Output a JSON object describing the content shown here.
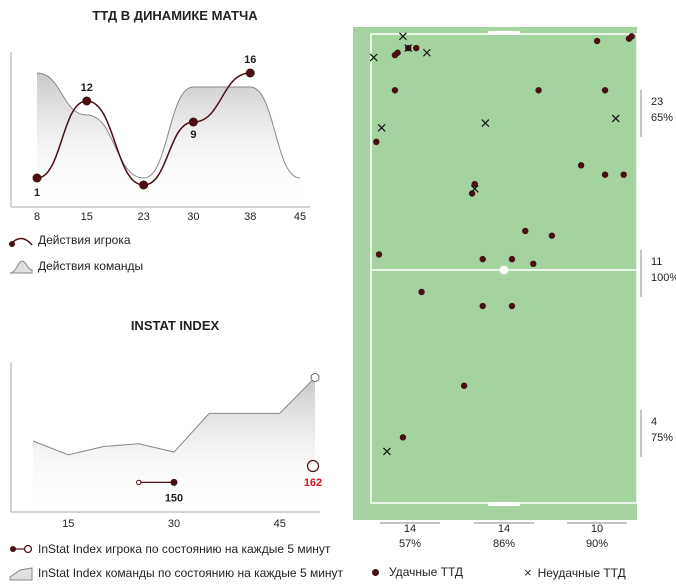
{
  "chart_data": [
    {
      "type": "line",
      "title": "ТТД В ДИНАМИКЕ МАТЧА",
      "x_ticks": [
        8,
        15,
        23,
        30,
        38,
        45
      ],
      "xlim": [
        8,
        45
      ],
      "series": [
        {
          "name": "Действия игрока",
          "x": [
            8,
            15,
            23,
            30,
            38
          ],
          "values": [
            1,
            12,
            0,
            9,
            16
          ]
        },
        {
          "name": "Действия команды",
          "x": [
            8,
            15,
            23,
            30,
            38,
            45
          ],
          "values": [
            16,
            10,
            1,
            14,
            14,
            1
          ]
        }
      ],
      "point_labels": [
        "1",
        "12",
        "",
        "9",
        "16"
      ]
    },
    {
      "type": "line",
      "title": "INSTAT INDEX",
      "x_ticks": [
        15,
        30,
        45
      ],
      "xlim": [
        10,
        50
      ],
      "series": [
        {
          "name": "InStat Index игрока по состоянию на каждые 5 минут",
          "x": [
            25,
            30
          ],
          "values": [
            150,
            150
          ]
        },
        {
          "name": "InStat Index команды по состоянию на каждые 5 минут",
          "x": [
            10,
            15,
            20,
            25,
            30,
            35,
            40,
            45,
            50
          ],
          "values": [
            165,
            160,
            163,
            164,
            161,
            175,
            175,
            175,
            188
          ]
        }
      ],
      "labels": {
        "player_value": "150",
        "team_value": "162"
      }
    },
    {
      "type": "scatter",
      "title": "",
      "zone_labels_right": [
        {
          "count": "23",
          "pct": "65%"
        },
        {
          "count": "11",
          "pct": "100%"
        },
        {
          "count": "4",
          "pct": "75%"
        }
      ],
      "zone_labels_bottom": [
        {
          "count": "14",
          "pct": "57%"
        },
        {
          "count": "14",
          "pct": "86%"
        },
        {
          "count": "10",
          "pct": "90%"
        }
      ],
      "successful": [
        [
          0.97,
          0.01
        ],
        [
          0.98,
          0.005
        ],
        [
          0.09,
          0.045
        ],
        [
          0.1,
          0.04
        ],
        [
          0.14,
          0.03
        ],
        [
          0.17,
          0.03
        ],
        [
          0.09,
          0.12
        ],
        [
          0.63,
          0.12
        ],
        [
          0.85,
          0.015
        ],
        [
          0.88,
          0.12
        ],
        [
          0.02,
          0.23
        ],
        [
          0.79,
          0.28
        ],
        [
          0.88,
          0.3
        ],
        [
          0.95,
          0.3
        ],
        [
          0.39,
          0.32
        ],
        [
          0.38,
          0.34
        ],
        [
          0.58,
          0.42
        ],
        [
          0.68,
          0.43
        ],
        [
          0.03,
          0.47
        ],
        [
          0.42,
          0.48
        ],
        [
          0.53,
          0.48
        ],
        [
          0.61,
          0.49
        ],
        [
          0.19,
          0.55
        ],
        [
          0.53,
          0.58
        ],
        [
          0.42,
          0.58
        ],
        [
          0.35,
          0.75
        ],
        [
          0.12,
          0.86
        ]
      ],
      "unsuccessful": [
        [
          0.12,
          0.005
        ],
        [
          0.14,
          0.03
        ],
        [
          0.21,
          0.04
        ],
        [
          0.01,
          0.05
        ],
        [
          0.04,
          0.2
        ],
        [
          0.43,
          0.19
        ],
        [
          0.92,
          0.18
        ],
        [
          0.39,
          0.33
        ],
        [
          0.06,
          0.89
        ]
      ],
      "legend": {
        "successful": "Удачные ТТД",
        "unsuccessful": "Неудачные ТТД"
      }
    }
  ]
}
